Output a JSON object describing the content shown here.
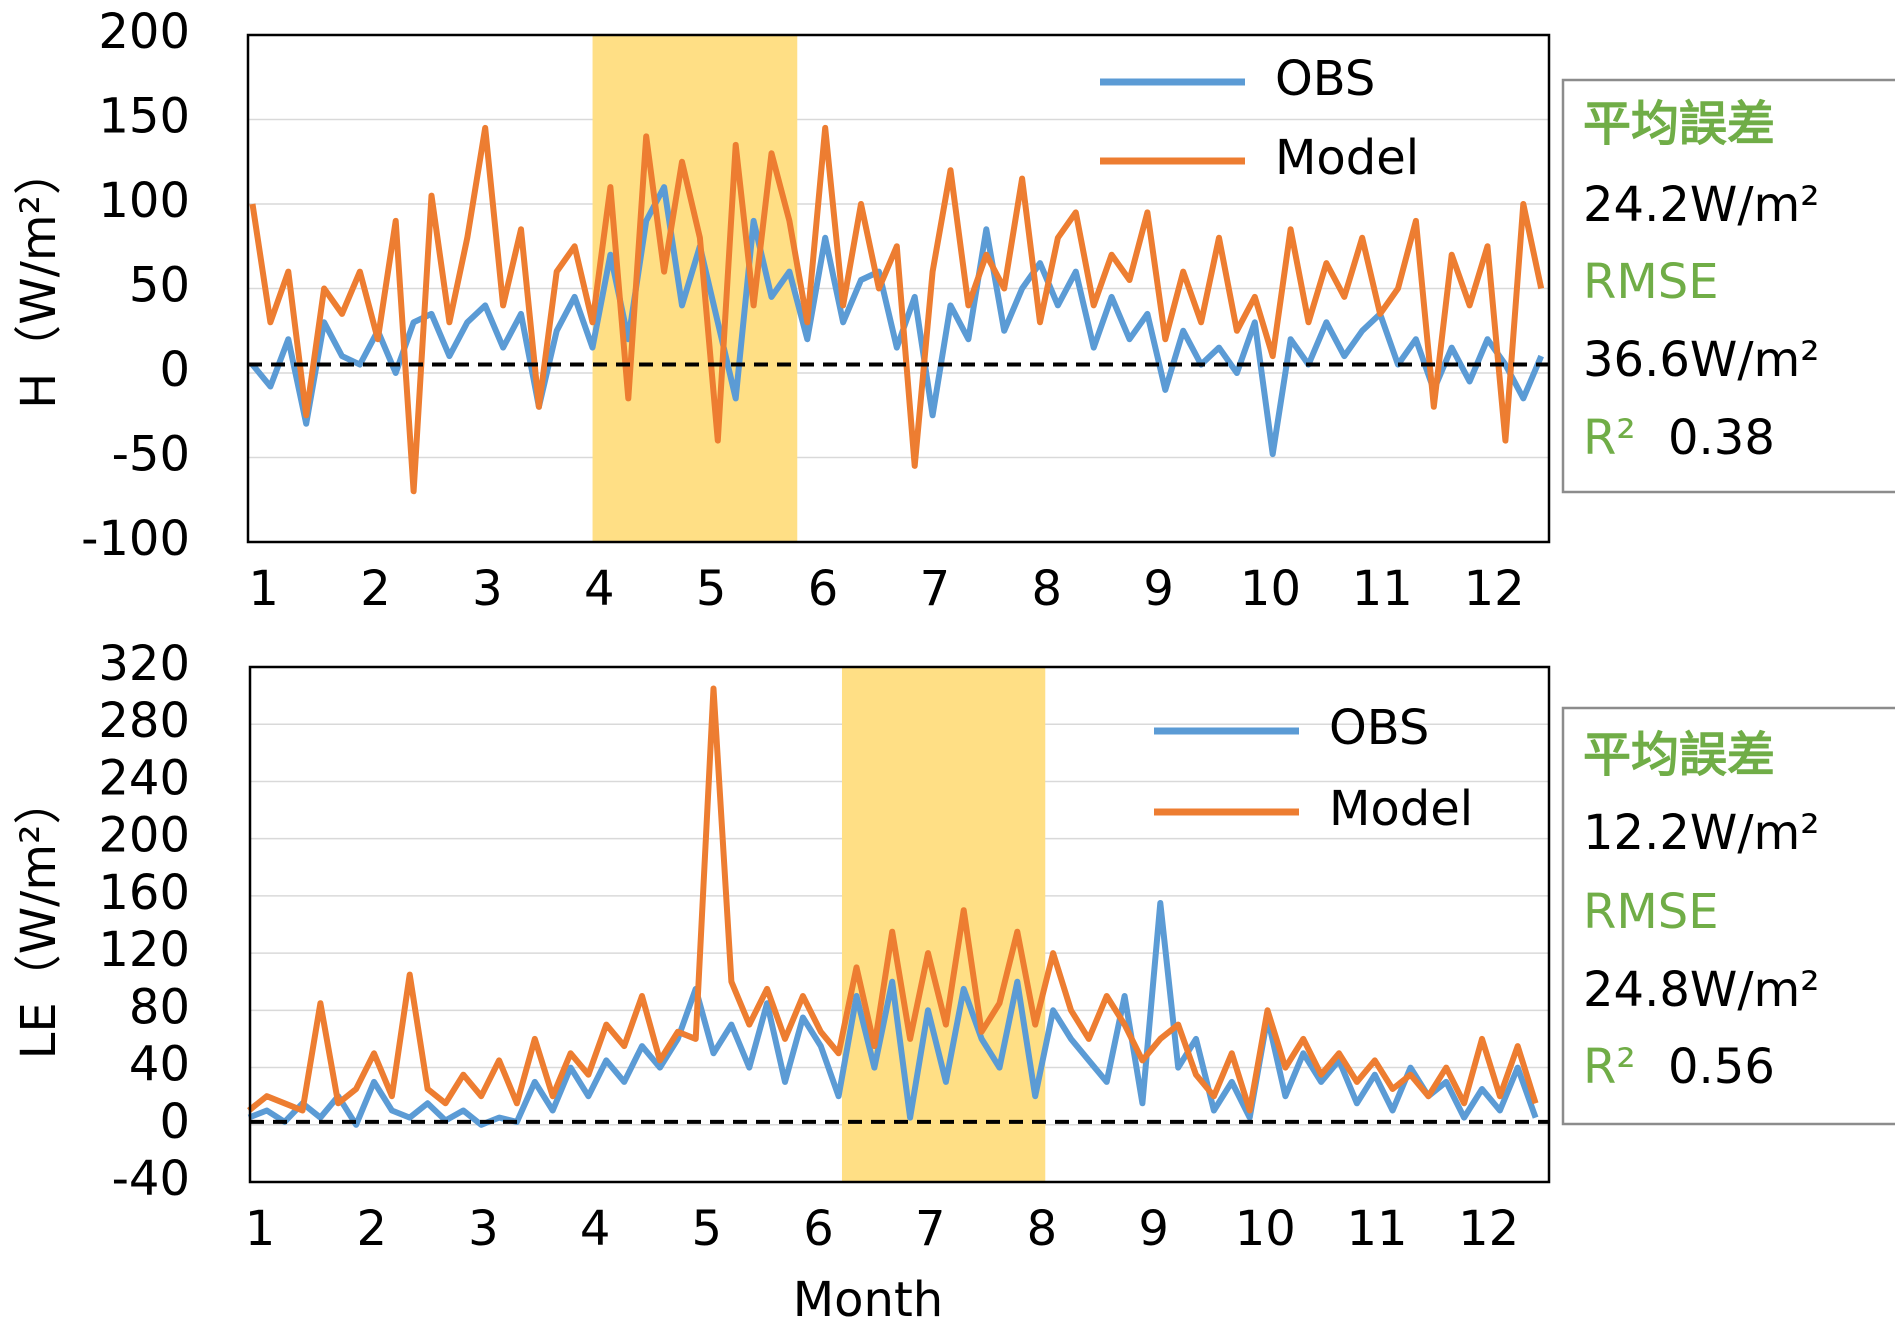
{
  "chart_data": [
    {
      "type": "line",
      "y_label": "H（W/m²）",
      "x": [
        0.9,
        1.06,
        1.22,
        1.38,
        1.54,
        1.7,
        1.86,
        2.02,
        2.18,
        2.34,
        2.5,
        2.66,
        2.82,
        2.98,
        3.14,
        3.3,
        3.46,
        3.62,
        3.78,
        3.94,
        4.1,
        4.26,
        4.42,
        4.58,
        4.74,
        4.9,
        5.06,
        5.22,
        5.38,
        5.54,
        5.7,
        5.86,
        6.02,
        6.18,
        6.34,
        6.5,
        6.66,
        6.82,
        6.98,
        7.14,
        7.3,
        7.46,
        7.62,
        7.78,
        7.94,
        8.1,
        8.26,
        8.42,
        8.58,
        8.74,
        8.9,
        9.06,
        9.22,
        9.38,
        9.54,
        9.7,
        9.86,
        10.02,
        10.18,
        10.34,
        10.5,
        10.66,
        10.82,
        10.98,
        11.14,
        11.3,
        11.46,
        11.62,
        11.78,
        11.94,
        12.1,
        12.26,
        12.42
      ],
      "series": [
        {
          "name": "OBS",
          "color": "#5b9bd5",
          "values": [
            5,
            -8,
            20,
            -30,
            30,
            10,
            5,
            25,
            0,
            30,
            35,
            10,
            30,
            40,
            15,
            35,
            -20,
            25,
            45,
            15,
            70,
            20,
            90,
            110,
            40,
            75,
            30,
            -15,
            90,
            45,
            60,
            20,
            80,
            30,
            55,
            60,
            15,
            45,
            -25,
            40,
            20,
            85,
            25,
            50,
            65,
            40,
            60,
            15,
            45,
            20,
            35,
            -10,
            25,
            5,
            15,
            0,
            30,
            -48,
            20,
            5,
            30,
            10,
            25,
            35,
            5,
            20,
            -10,
            15,
            -5,
            20,
            5,
            -15,
            10
          ]
        },
        {
          "name": "Model",
          "color": "#ed7d31",
          "values": [
            100,
            30,
            60,
            -25,
            50,
            35,
            60,
            20,
            90,
            -70,
            105,
            30,
            80,
            145,
            40,
            85,
            -20,
            60,
            75,
            30,
            110,
            -15,
            140,
            60,
            125,
            80,
            -40,
            135,
            40,
            130,
            90,
            30,
            145,
            40,
            100,
            50,
            75,
            -55,
            60,
            120,
            40,
            70,
            50,
            115,
            30,
            80,
            95,
            40,
            70,
            55,
            95,
            20,
            60,
            30,
            80,
            25,
            45,
            10,
            85,
            30,
            65,
            45,
            80,
            35,
            50,
            90,
            -20,
            70,
            40,
            75,
            -40,
            100,
            50
          ]
        }
      ],
      "xlim": [
        0.86,
        12.49
      ],
      "xticks": [
        1,
        2,
        3,
        4,
        5,
        6,
        7,
        8,
        9,
        10,
        11,
        12
      ],
      "ylim": [
        -100,
        200
      ],
      "yticks": [
        -100,
        -50,
        0,
        50,
        100,
        150,
        200
      ],
      "grid": true,
      "highlight": [
        3.94,
        5.77
      ],
      "reference_line": 5,
      "stats": {
        "mean_error_label": "平均誤差",
        "mean_error": "24.2W/m²",
        "rmse_label": "RMSE",
        "rmse": "36.6W/m²",
        "r2_label": "R²",
        "r2": 0.38
      }
    },
    {
      "type": "line",
      "y_label": "LE（W/m²）",
      "x_label": "Month",
      "x": [
        0.9,
        1.06,
        1.22,
        1.38,
        1.54,
        1.7,
        1.86,
        2.02,
        2.18,
        2.34,
        2.5,
        2.66,
        2.82,
        2.98,
        3.14,
        3.3,
        3.46,
        3.62,
        3.78,
        3.94,
        4.1,
        4.26,
        4.42,
        4.58,
        4.74,
        4.9,
        5.06,
        5.22,
        5.38,
        5.54,
        5.7,
        5.86,
        6.02,
        6.18,
        6.34,
        6.5,
        6.66,
        6.82,
        6.98,
        7.14,
        7.3,
        7.46,
        7.62,
        7.78,
        7.94,
        8.1,
        8.26,
        8.42,
        8.58,
        8.74,
        8.9,
        9.06,
        9.22,
        9.38,
        9.54,
        9.7,
        9.86,
        10.02,
        10.18,
        10.34,
        10.5,
        10.66,
        10.82,
        10.98,
        11.14,
        11.3,
        11.46,
        11.62,
        11.78,
        11.94,
        12.1,
        12.26,
        12.42
      ],
      "series": [
        {
          "name": "OBS",
          "color": "#5b9bd5",
          "values": [
            5,
            10,
            2,
            15,
            5,
            20,
            0,
            30,
            10,
            5,
            15,
            3,
            10,
            0,
            5,
            2,
            30,
            10,
            40,
            20,
            45,
            30,
            55,
            40,
            60,
            95,
            50,
            70,
            40,
            85,
            30,
            75,
            55,
            20,
            90,
            40,
            100,
            5,
            80,
            30,
            95,
            60,
            40,
            100,
            20,
            80,
            60,
            45,
            30,
            90,
            15,
            155,
            40,
            60,
            10,
            30,
            5,
            75,
            20,
            50,
            30,
            45,
            15,
            35,
            10,
            40,
            20,
            30,
            5,
            25,
            10,
            40,
            5
          ]
        },
        {
          "name": "Model",
          "color": "#ed7d31",
          "values": [
            10,
            20,
            15,
            10,
            85,
            15,
            25,
            50,
            20,
            105,
            25,
            15,
            35,
            20,
            45,
            15,
            60,
            20,
            50,
            35,
            70,
            55,
            90,
            45,
            65,
            60,
            305,
            100,
            70,
            95,
            60,
            90,
            65,
            50,
            110,
            55,
            135,
            60,
            120,
            70,
            150,
            65,
            85,
            135,
            70,
            120,
            80,
            60,
            90,
            70,
            45,
            60,
            70,
            35,
            20,
            50,
            10,
            80,
            40,
            60,
            35,
            50,
            30,
            45,
            25,
            35,
            20,
            40,
            15,
            60,
            20,
            55,
            15
          ]
        }
      ],
      "xlim": [
        0.91,
        12.54
      ],
      "xticks": [
        1,
        2,
        3,
        4,
        5,
        6,
        7,
        8,
        9,
        10,
        11,
        12
      ],
      "ylim": [
        -40,
        320
      ],
      "yticks": [
        -40,
        0,
        40,
        80,
        120,
        160,
        200,
        240,
        280,
        320
      ],
      "grid": true,
      "highlight": [
        6.21,
        8.03
      ],
      "reference_line": 2,
      "stats": {
        "mean_error_label": "平均誤差",
        "mean_error": "12.2W/m²",
        "rmse_label": "RMSE",
        "rmse": "24.8W/m²",
        "r2_label": "R²",
        "r2": 0.56
      }
    }
  ]
}
